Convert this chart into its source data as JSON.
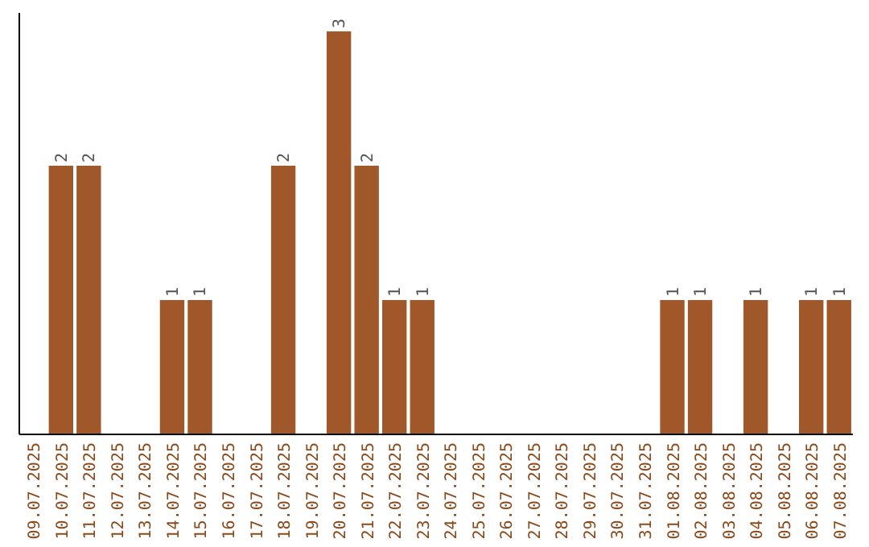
{
  "chart_data": {
    "type": "bar",
    "categories": [
      "09.07.2025",
      "10.07.2025",
      "11.07.2025",
      "12.07.2025",
      "13.07.2025",
      "14.07.2025",
      "15.07.2025",
      "16.07.2025",
      "17.07.2025",
      "18.07.2025",
      "19.07.2025",
      "20.07.2025",
      "21.07.2025",
      "22.07.2025",
      "23.07.2025",
      "24.07.2025",
      "25.07.2025",
      "26.07.2025",
      "27.07.2025",
      "28.07.2025",
      "29.07.2025",
      "30.07.2025",
      "31.07.2025",
      "01.08.2025",
      "02.08.2025",
      "03.08.2025",
      "04.08.2025",
      "05.08.2025",
      "06.08.2025",
      "07.08.2025"
    ],
    "values": [
      0,
      2,
      2,
      0,
      0,
      1,
      1,
      0,
      0,
      2,
      0,
      3,
      2,
      1,
      1,
      0,
      0,
      0,
      0,
      0,
      0,
      0,
      0,
      1,
      1,
      0,
      1,
      0,
      1,
      1
    ],
    "value_labels": [
      null,
      "2",
      "2",
      null,
      null,
      "1",
      "1",
      null,
      null,
      "2",
      null,
      "3",
      "2",
      "1",
      "1",
      null,
      null,
      null,
      null,
      null,
      null,
      null,
      null,
      "1",
      "1",
      null,
      "1",
      null,
      "1",
      "1"
    ],
    "color": "#a0582a",
    "relative": false,
    "grid": false
  }
}
